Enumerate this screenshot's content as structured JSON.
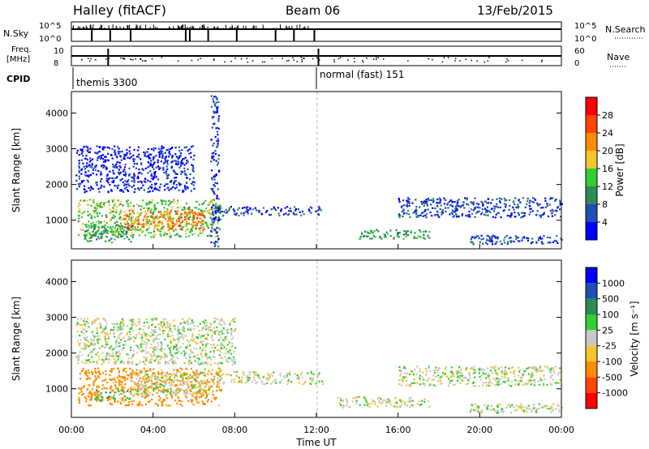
{
  "header": {
    "station": "Halley (fitACF)",
    "beam": "Beam 06",
    "date": "13/Feb/2015"
  },
  "summary": {
    "nsky_label": "N.Sky",
    "nsky_ticks": [
      "10^5",
      "10^0"
    ],
    "nsearch_label": "N.Search",
    "nsearch_ticks": [
      "10^5",
      "10^0"
    ],
    "freq_label_1": "Freq.",
    "freq_label_2": "[MHz]",
    "freq_ticks": [
      "10",
      "8"
    ],
    "nave_label": "Nave",
    "nave_ticks": [
      "60",
      "0"
    ],
    "cpid_label": "CPID",
    "cpid_modes": [
      {
        "name": "themis 3300",
        "start_hour": 0
      },
      {
        "name": "normal (fast) 151",
        "start_hour": 12
      }
    ],
    "sky_spikes": [
      1,
      1.9,
      2.9,
      5.6,
      5.8,
      6.7,
      8.1,
      10,
      10.9,
      11.9
    ],
    "freq_spikes": [
      1.8,
      12.1
    ]
  },
  "chart_data": [
    {
      "type": "heatmap",
      "title": "Power",
      "xlabel": "",
      "ylabel": "Slant Range [km]",
      "xlim": [
        0,
        24
      ],
      "ylim": [
        200,
        4600
      ],
      "yticks": [
        1000,
        2000,
        3000,
        4000
      ],
      "colorbar_label": "Power [dB]",
      "colorbar_ticks": [
        "4",
        "8",
        "12",
        "16",
        "20",
        "24",
        "28"
      ],
      "colorbar_range": [
        0,
        30
      ],
      "colors": [
        "#0000ff",
        "#1f4fb4",
        "#2e8b57",
        "#32cd32",
        "#f4c430",
        "#ff8c00",
        "#ff4500",
        "#ff0000"
      ],
      "regions": [
        {
          "x": [
            0.3,
            7.3
          ],
          "y": [
            550,
            1600
          ],
          "value": 14
        },
        {
          "x": [
            2.5,
            6.5
          ],
          "y": [
            750,
            1300
          ],
          "value": 22
        },
        {
          "x": [
            0.6,
            3.0
          ],
          "y": [
            400,
            900
          ],
          "value": 10
        },
        {
          "x": [
            0.2,
            6.0
          ],
          "y": [
            1800,
            3100
          ],
          "value": 3
        },
        {
          "x": [
            7.0,
            12.3
          ],
          "y": [
            1150,
            1400
          ],
          "value": 5
        },
        {
          "x": [
            14.0,
            17.5
          ],
          "y": [
            500,
            760
          ],
          "value": 11
        },
        {
          "x": [
            16.0,
            24.0
          ],
          "y": [
            1100,
            1650
          ],
          "value": 5
        },
        {
          "x": [
            19.5,
            24.0
          ],
          "y": [
            350,
            600
          ],
          "value": 5
        },
        {
          "x": [
            6.8,
            7.2
          ],
          "y": [
            200,
            4500
          ],
          "value": 4
        }
      ]
    },
    {
      "type": "heatmap",
      "title": "Velocity",
      "xlabel": "Time UT",
      "ylabel": "Slant Range [km]",
      "xlim": [
        0,
        24
      ],
      "ylim": [
        200,
        4600
      ],
      "yticks": [
        1000,
        2000,
        3000,
        4000
      ],
      "xticks": [
        "00:00",
        "04:00",
        "08:00",
        "12:00",
        "16:00",
        "20:00",
        "00:00"
      ],
      "colorbar_label": "Velocity [m s⁻¹]",
      "colorbar_ticks": [
        "1000",
        "500",
        "100",
        "25",
        "-25",
        "-100",
        "-500",
        "-1000"
      ],
      "colors": [
        "#0000ff",
        "#1f4fb4",
        "#2e8b57",
        "#32cd32",
        "#c8c8c8",
        "#f4c430",
        "#ff8c00",
        "#ff4500",
        "#ff0000"
      ],
      "regions": [
        {
          "x": [
            0.3,
            7.3
          ],
          "y": [
            550,
            1600
          ],
          "value": -150
        },
        {
          "x": [
            3.0,
            6.8
          ],
          "y": [
            800,
            1500
          ],
          "value": 0
        },
        {
          "x": [
            1.0,
            3.0
          ],
          "y": [
            700,
            1000
          ],
          "value": 60
        },
        {
          "x": [
            0.2,
            8.0
          ],
          "y": [
            1700,
            3000
          ],
          "value": 0
        },
        {
          "x": [
            7.0,
            12.3
          ],
          "y": [
            1150,
            1500
          ],
          "value": 0
        },
        {
          "x": [
            13.0,
            17.5
          ],
          "y": [
            500,
            800
          ],
          "value": 0
        },
        {
          "x": [
            16.0,
            24.0
          ],
          "y": [
            1100,
            1650
          ],
          "value": 0
        },
        {
          "x": [
            19.5,
            24.0
          ],
          "y": [
            350,
            600
          ],
          "value": 0
        }
      ]
    }
  ]
}
